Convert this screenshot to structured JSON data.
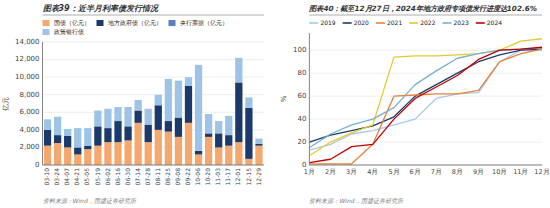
{
  "chart_data": [
    {
      "type": "bar",
      "stacked": true,
      "title": "图表39：近半月利率债发行情况",
      "y_label": "亿元",
      "source": "资料来源：Wind，国盛证券研究所",
      "categories": [
        "03-10",
        "03-24",
        "04-07",
        "04-21",
        "05-05",
        "05-19",
        "06-02",
        "06-16",
        "06-30",
        "07-14",
        "07-28",
        "08-11",
        "08-25",
        "09-08",
        "09-22",
        "10-06",
        "10-20",
        "11-03",
        "11-17",
        "12-01",
        "12-15",
        "12-29"
      ],
      "series": [
        {
          "name": "国债（亿元）",
          "color": "#F5A86E",
          "values": [
            2200,
            2500,
            2000,
            1200,
            1800,
            2200,
            2600,
            2600,
            2800,
            4800,
            2600,
            4000,
            3800,
            3200,
            4800,
            1200,
            3200,
            2000,
            2200,
            2600,
            700,
            2200
          ]
        },
        {
          "name": "地方政府债（亿元）",
          "color": "#1B3A6B",
          "values": [
            1800,
            900,
            1300,
            800,
            400,
            2200,
            1600,
            2400,
            1600,
            1400,
            2000,
            2800,
            1200,
            2200,
            4200,
            400,
            400,
            1600,
            1200,
            6800,
            5800,
            200
          ]
        },
        {
          "name": "央行票据（亿元）",
          "color": "#5B7FC0",
          "values": [
            0,
            0,
            0,
            0,
            0,
            0,
            0,
            0,
            0,
            0,
            0,
            0,
            0,
            0,
            0,
            0,
            0,
            0,
            0,
            0,
            0,
            0
          ]
        },
        {
          "name": "政策银行债",
          "color": "#9DC3E6",
          "values": [
            1200,
            2100,
            800,
            2200,
            2000,
            1800,
            2200,
            1600,
            2200,
            1200,
            1800,
            1200,
            4800,
            4200,
            1000,
            9800,
            2200,
            1400,
            2200,
            2800,
            1200,
            600
          ]
        }
      ],
      "ylim": [
        0,
        14000
      ],
      "yticks": [
        0,
        {
          "value": 2000,
          "label": "2,000"
        },
        {
          "value": 4000,
          "label": "4,000"
        },
        {
          "value": 6000,
          "label": "6,000"
        },
        {
          "value": 8000,
          "label": "8,000"
        },
        {
          "value": 10000,
          "label": "10,000"
        },
        {
          "value": 12000,
          "label": "12,000"
        },
        {
          "value": 14000,
          "label": "14,000"
        }
      ],
      "grid": true,
      "legend": "top"
    },
    {
      "type": "line",
      "title": "图表40：截至12月27日，2024年地方政府专项债发行进度达102.6%",
      "y_label": "%",
      "source": "资料来源：Wind，国盛证券研究所",
      "categories": [
        "1月",
        "2月",
        "3月",
        "4月",
        "5月",
        "6月",
        "7月",
        "8月",
        "9月",
        "10月",
        "11月",
        "12月"
      ],
      "series": [
        {
          "name": "2019",
          "color": "#A8C8E8",
          "values": [
            13,
            18,
            27,
            30,
            35,
            40,
            58,
            62,
            63,
            90,
            100,
            100
          ]
        },
        {
          "name": "2020",
          "color": "#1B3A6B",
          "values": [
            20,
            26,
            30,
            34,
            42,
            60,
            70,
            80,
            90,
            96,
            100,
            101
          ]
        },
        {
          "name": "2021",
          "color": "#E8823A",
          "values": [
            1,
            1,
            1,
            18,
            60,
            61,
            62,
            62,
            65,
            90,
            97,
            101
          ]
        },
        {
          "name": "2022",
          "color": "#E8C832",
          "values": [
            8,
            20,
            28,
            35,
            94,
            95,
            95,
            96,
            97,
            100,
            108,
            110
          ]
        },
        {
          "name": "2023",
          "color": "#78B0D0",
          "values": [
            15,
            27,
            35,
            40,
            50,
            70,
            82,
            93,
            97,
            100,
            101,
            102
          ]
        },
        {
          "name": "2024",
          "color": "#C00000",
          "values": [
            2,
            5,
            16,
            18,
            40,
            58,
            68,
            78,
            92,
            100,
            101,
            102.6
          ]
        }
      ],
      "ylim": [
        0,
        115
      ],
      "yticks": [
        0,
        20,
        40,
        60,
        80,
        100
      ],
      "grid": true,
      "legend": "top"
    }
  ]
}
